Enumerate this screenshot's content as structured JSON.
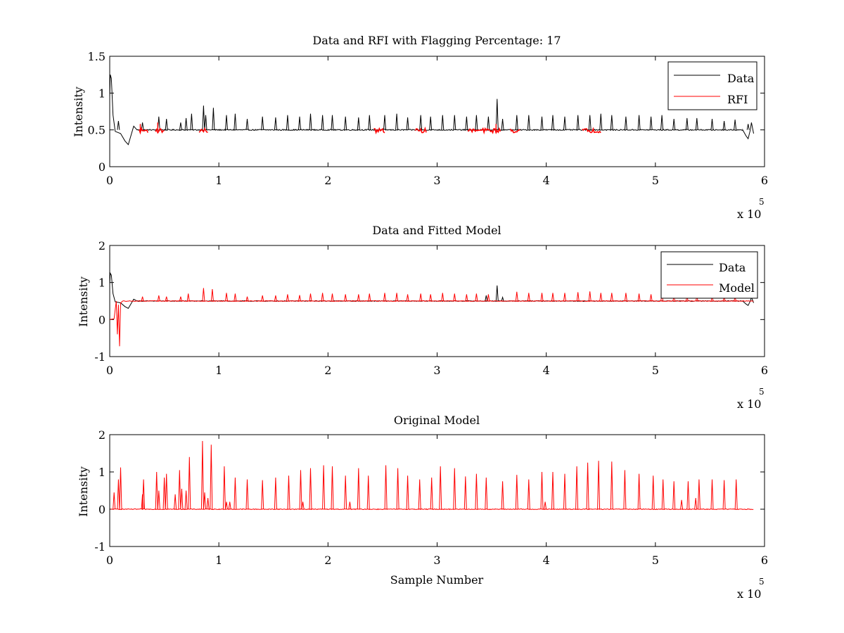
{
  "figure": {
    "background": "#ffffff"
  },
  "chart_data": [
    {
      "type": "line",
      "title": "Data and RFI with Flagging Percentage: 17",
      "xlabel": "",
      "ylabel": "Intensity",
      "xlim": [
        0,
        6
      ],
      "ylim": [
        0,
        1.5
      ],
      "xticks": [
        "0",
        "1",
        "2",
        "3",
        "4",
        "5",
        "6"
      ],
      "yticks": [
        "0",
        "0.5",
        "1",
        "1.5"
      ],
      "x_multiplier": {
        "base": "x 10",
        "exponent": "5"
      },
      "legend": {
        "placement": "top-right",
        "entries": [
          {
            "label": "Data",
            "color": "#000000"
          },
          {
            "label": "RFI",
            "color": "#ff0000"
          }
        ]
      },
      "series": [
        {
          "name": "Data",
          "color": "#000000",
          "baseline": 0.5,
          "x_end": 5.9,
          "start_transient": [
            [
              0,
              0.95
            ],
            [
              0.005,
              1.25
            ],
            [
              0.015,
              1.2
            ],
            [
              0.03,
              0.7
            ],
            [
              0.05,
              0.48
            ],
            [
              0.1,
              0.45
            ],
            [
              0.14,
              0.35
            ],
            [
              0.17,
              0.3
            ],
            [
              0.22,
              0.55
            ],
            [
              0.25,
              0.5
            ]
          ],
          "end_transient": [
            [
              5.8,
              0.5
            ],
            [
              5.83,
              0.42
            ],
            [
              5.85,
              0.38
            ],
            [
              5.87,
              0.5
            ],
            [
              5.88,
              0.6
            ],
            [
              5.9,
              0.45
            ]
          ],
          "spikes": [
            [
              0.08,
              0.62
            ],
            [
              0.3,
              0.6
            ],
            [
              0.45,
              0.68
            ],
            [
              0.52,
              0.65
            ],
            [
              0.65,
              0.6
            ],
            [
              0.7,
              0.66
            ],
            [
              0.75,
              0.72
            ],
            [
              0.86,
              0.83
            ],
            [
              0.88,
              0.7
            ],
            [
              0.95,
              0.8
            ],
            [
              1.07,
              0.7
            ],
            [
              1.15,
              0.72
            ],
            [
              1.26,
              0.65
            ],
            [
              1.4,
              0.68
            ],
            [
              1.52,
              0.67
            ],
            [
              1.63,
              0.7
            ],
            [
              1.74,
              0.68
            ],
            [
              1.84,
              0.72
            ],
            [
              1.95,
              0.7
            ],
            [
              2.04,
              0.7
            ],
            [
              2.16,
              0.68
            ],
            [
              2.28,
              0.67
            ],
            [
              2.38,
              0.7
            ],
            [
              2.52,
              0.7
            ],
            [
              2.63,
              0.72
            ],
            [
              2.73,
              0.67
            ],
            [
              2.85,
              0.7
            ],
            [
              2.94,
              0.68
            ],
            [
              3.05,
              0.7
            ],
            [
              3.16,
              0.7
            ],
            [
              3.27,
              0.68
            ],
            [
              3.36,
              0.7
            ],
            [
              3.47,
              0.68
            ],
            [
              3.55,
              0.92
            ],
            [
              3.6,
              0.65
            ],
            [
              3.73,
              0.7
            ],
            [
              3.84,
              0.7
            ],
            [
              3.96,
              0.68
            ],
            [
              4.06,
              0.7
            ],
            [
              4.17,
              0.68
            ],
            [
              4.29,
              0.7
            ],
            [
              4.4,
              0.7
            ],
            [
              4.5,
              0.72
            ],
            [
              4.6,
              0.7
            ],
            [
              4.73,
              0.68
            ],
            [
              4.85,
              0.7
            ],
            [
              4.96,
              0.68
            ],
            [
              5.06,
              0.7
            ],
            [
              5.17,
              0.65
            ],
            [
              5.29,
              0.66
            ],
            [
              5.38,
              0.66
            ],
            [
              5.52,
              0.65
            ],
            [
              5.63,
              0.62
            ],
            [
              5.73,
              0.64
            ],
            [
              5.85,
              0.58
            ]
          ]
        },
        {
          "name": "RFI",
          "color": "#ff0000",
          "baseline": 0.49,
          "segments": [
            [
              0.27,
              0.36
            ],
            [
              0.42,
              0.5
            ],
            [
              0.82,
              0.9
            ],
            [
              2.42,
              2.52
            ],
            [
              2.8,
              2.9
            ],
            [
              3.28,
              3.58
            ],
            [
              3.67,
              3.76
            ],
            [
              4.33,
              4.5
            ]
          ],
          "spikes": [
            [
              0.28,
              0.58
            ],
            [
              0.44,
              0.6
            ],
            [
              3.54,
              0.58
            ]
          ]
        }
      ]
    },
    {
      "type": "line",
      "title": "Data and Fitted Model",
      "xlabel": "",
      "ylabel": "Intensity",
      "xlim": [
        0,
        6
      ],
      "ylim": [
        -1,
        2
      ],
      "xticks": [
        "0",
        "1",
        "2",
        "3",
        "4",
        "5",
        "6"
      ],
      "yticks": [
        "-1",
        "0",
        "1",
        "2"
      ],
      "x_multiplier": {
        "base": "x 10",
        "exponent": "5"
      },
      "legend": {
        "placement": "top-right",
        "entries": [
          {
            "label": "Data",
            "color": "#000000"
          },
          {
            "label": "Model",
            "color": "#ff0000"
          }
        ]
      },
      "series": [
        {
          "name": "Data",
          "color": "#000000",
          "baseline": 0.5,
          "x_end": 5.9,
          "start_transient": [
            [
              0,
              0.95
            ],
            [
              0.005,
              1.25
            ],
            [
              0.015,
              1.2
            ],
            [
              0.03,
              0.7
            ],
            [
              0.05,
              0.48
            ],
            [
              0.1,
              0.45
            ],
            [
              0.14,
              0.35
            ],
            [
              0.17,
              0.3
            ],
            [
              0.22,
              0.55
            ],
            [
              0.25,
              0.5
            ]
          ],
          "end_transient": [
            [
              5.8,
              0.5
            ],
            [
              5.83,
              0.42
            ],
            [
              5.85,
              0.38
            ],
            [
              5.87,
              0.5
            ],
            [
              5.88,
              0.6
            ],
            [
              5.9,
              0.45
            ]
          ],
          "spikes": [
            [
              3.45,
              0.65
            ],
            [
              3.55,
              0.92
            ],
            [
              3.6,
              0.6
            ]
          ]
        },
        {
          "name": "Model",
          "color": "#ff0000",
          "baseline": 0.5,
          "x_end": 5.9,
          "start_transient": [
            [
              0,
              0.0
            ],
            [
              0.04,
              0.02
            ],
            [
              0.06,
              0.5
            ],
            [
              0.07,
              -0.4
            ],
            [
              0.08,
              0.4
            ],
            [
              0.09,
              -0.72
            ],
            [
              0.1,
              0.45
            ],
            [
              0.12,
              0.5
            ]
          ],
          "spikes": [
            [
              0.3,
              0.62
            ],
            [
              0.45,
              0.65
            ],
            [
              0.52,
              0.62
            ],
            [
              0.65,
              0.62
            ],
            [
              0.72,
              0.7
            ],
            [
              0.86,
              0.85
            ],
            [
              0.94,
              0.82
            ],
            [
              1.07,
              0.72
            ],
            [
              1.15,
              0.7
            ],
            [
              1.26,
              0.62
            ],
            [
              1.4,
              0.65
            ],
            [
              1.52,
              0.65
            ],
            [
              1.63,
              0.68
            ],
            [
              1.74,
              0.66
            ],
            [
              1.84,
              0.7
            ],
            [
              1.95,
              0.72
            ],
            [
              2.04,
              0.7
            ],
            [
              2.16,
              0.68
            ],
            [
              2.28,
              0.68
            ],
            [
              2.38,
              0.7
            ],
            [
              2.52,
              0.72
            ],
            [
              2.63,
              0.72
            ],
            [
              2.73,
              0.68
            ],
            [
              2.85,
              0.7
            ],
            [
              2.94,
              0.68
            ],
            [
              3.05,
              0.72
            ],
            [
              3.16,
              0.7
            ],
            [
              3.27,
              0.68
            ],
            [
              3.36,
              0.7
            ],
            [
              3.47,
              0.68
            ],
            [
              3.73,
              0.75
            ],
            [
              3.84,
              0.72
            ],
            [
              3.96,
              0.72
            ],
            [
              4.06,
              0.72
            ],
            [
              4.17,
              0.72
            ],
            [
              4.29,
              0.74
            ],
            [
              4.4,
              0.76
            ],
            [
              4.5,
              0.72
            ],
            [
              4.6,
              0.72
            ],
            [
              4.73,
              0.72
            ],
            [
              4.85,
              0.7
            ],
            [
              4.96,
              0.68
            ],
            [
              5.06,
              0.7
            ],
            [
              5.17,
              0.62
            ],
            [
              5.29,
              0.62
            ],
            [
              5.38,
              0.62
            ],
            [
              5.52,
              0.62
            ],
            [
              5.63,
              0.6
            ],
            [
              5.73,
              0.6
            ]
          ]
        }
      ]
    },
    {
      "type": "line",
      "title": "Original Model",
      "xlabel": "Sample Number",
      "ylabel": "Intensity",
      "xlim": [
        0,
        6
      ],
      "ylim": [
        -1,
        2
      ],
      "xticks": [
        "0",
        "1",
        "2",
        "3",
        "4",
        "5",
        "6"
      ],
      "yticks": [
        "-1",
        "0",
        "1",
        "2"
      ],
      "x_multiplier": {
        "base": "x 10",
        "exponent": "5"
      },
      "legend": null,
      "series": [
        {
          "name": "Original Model",
          "color": "#ff0000",
          "baseline": 0.0,
          "x_end": 5.9,
          "spikes": [
            [
              0.04,
              0.45
            ],
            [
              0.08,
              0.8
            ],
            [
              0.1,
              1.12
            ],
            [
              0.3,
              0.4
            ],
            [
              0.31,
              0.8
            ],
            [
              0.43,
              1.0
            ],
            [
              0.45,
              0.5
            ],
            [
              0.5,
              0.85
            ],
            [
              0.52,
              0.95
            ],
            [
              0.6,
              0.4
            ],
            [
              0.64,
              1.05
            ],
            [
              0.66,
              0.55
            ],
            [
              0.7,
              0.5
            ],
            [
              0.73,
              1.4
            ],
            [
              0.85,
              1.83
            ],
            [
              0.87,
              0.45
            ],
            [
              0.9,
              0.3
            ],
            [
              0.93,
              1.73
            ],
            [
              1.05,
              1.15
            ],
            [
              1.07,
              0.2
            ],
            [
              1.1,
              0.2
            ],
            [
              1.15,
              0.85
            ],
            [
              1.26,
              0.8
            ],
            [
              1.4,
              0.78
            ],
            [
              1.52,
              0.85
            ],
            [
              1.64,
              0.9
            ],
            [
              1.75,
              1.05
            ],
            [
              1.77,
              0.2
            ],
            [
              1.84,
              1.1
            ],
            [
              1.96,
              1.18
            ],
            [
              2.04,
              1.15
            ],
            [
              2.16,
              0.9
            ],
            [
              2.2,
              0.2
            ],
            [
              2.28,
              1.1
            ],
            [
              2.37,
              0.9
            ],
            [
              2.53,
              1.18
            ],
            [
              2.64,
              1.1
            ],
            [
              2.73,
              0.9
            ],
            [
              2.84,
              0.8
            ],
            [
              2.95,
              0.85
            ],
            [
              3.03,
              1.15
            ],
            [
              3.16,
              1.1
            ],
            [
              3.26,
              0.88
            ],
            [
              3.36,
              0.95
            ],
            [
              3.45,
              0.85
            ],
            [
              3.6,
              0.75
            ],
            [
              3.73,
              0.92
            ],
            [
              3.84,
              0.8
            ],
            [
              3.96,
              1.0
            ],
            [
              3.99,
              0.2
            ],
            [
              4.06,
              1.0
            ],
            [
              4.17,
              0.95
            ],
            [
              4.28,
              1.15
            ],
            [
              4.38,
              1.25
            ],
            [
              4.48,
              1.3
            ],
            [
              4.6,
              1.28
            ],
            [
              4.72,
              1.05
            ],
            [
              4.85,
              0.95
            ],
            [
              4.98,
              0.9
            ],
            [
              5.07,
              0.8
            ],
            [
              5.17,
              0.75
            ],
            [
              5.24,
              0.25
            ],
            [
              5.3,
              0.75
            ],
            [
              5.37,
              0.3
            ],
            [
              5.4,
              0.8
            ],
            [
              5.52,
              0.8
            ],
            [
              5.63,
              0.78
            ],
            [
              5.74,
              0.8
            ]
          ]
        }
      ]
    }
  ]
}
